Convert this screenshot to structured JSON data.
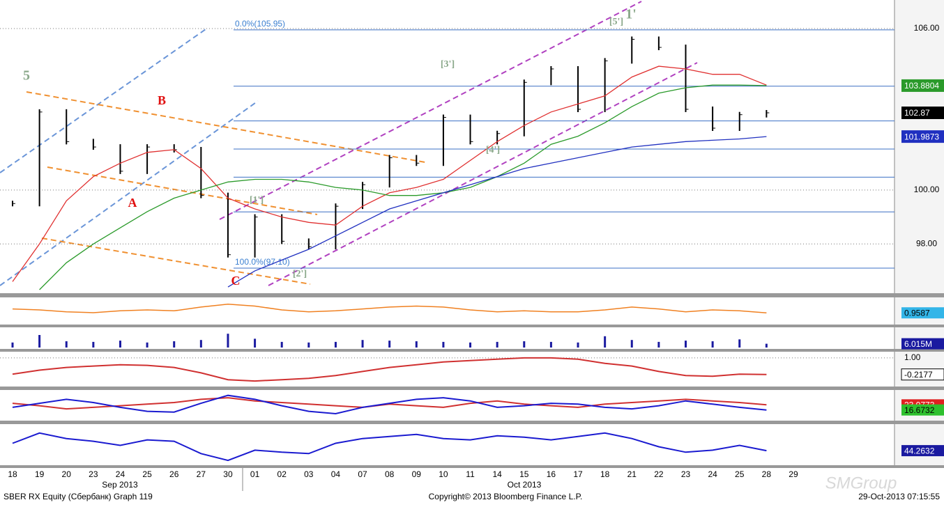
{
  "chart_data": {
    "type": "line",
    "title": "SBER RX Equity (Сбербанк) Graph 119",
    "copyright": "Copyright© 2013 Bloomberg Finance L.P.",
    "timestamp": "29-Oct-2013 07:15:55",
    "watermark": "SMGroup",
    "categories": [
      "18",
      "19",
      "20",
      "23",
      "24",
      "25",
      "26",
      "27",
      "30",
      "01",
      "02",
      "03",
      "04",
      "07",
      "08",
      "09",
      "10",
      "11",
      "14",
      "15",
      "16",
      "17",
      "18",
      "21",
      "22",
      "23",
      "24",
      "25",
      "28",
      "29"
    ],
    "months": [
      "Sep 2013",
      "Oct 2013"
    ],
    "ylim": [
      96.17,
      107.06
    ],
    "yticks": [
      {
        "value": 98,
        "label": "98.00"
      },
      {
        "value": 100,
        "label": "100.00"
      },
      {
        "value": 106,
        "label": "106.00"
      }
    ],
    "series": [
      {
        "color": "#000000",
        "values": [
          99.5,
          102.9,
          101.8,
          101.6,
          100.7,
          101.6,
          101.5,
          99.8,
          97.6,
          99.0,
          98.1,
          97.9,
          99.4,
          100.2,
          101.2,
          101.0,
          102.7,
          101.8,
          102.1,
          104.0,
          104.5,
          103.0,
          104.8,
          105.6,
          105.3,
          103.0,
          102.3,
          102.8,
          102.87,
          null
        ]
      },
      {
        "color": "#e03030",
        "values": [
          96.6,
          98.0,
          99.6,
          100.5,
          101.0,
          101.4,
          101.5,
          100.8,
          99.7,
          99.3,
          99.0,
          98.8,
          98.7,
          99.4,
          99.9,
          100.1,
          100.4,
          101.1,
          101.8,
          102.4,
          102.9,
          103.2,
          103.5,
          104.2,
          104.6,
          104.5,
          104.3,
          104.3,
          103.9,
          null
        ]
      },
      {
        "color": "#2a9a2a",
        "values": [
          null,
          96.3,
          97.3,
          98.0,
          98.6,
          99.2,
          99.7,
          100.0,
          100.3,
          100.4,
          100.4,
          100.3,
          100.1,
          100.0,
          99.8,
          99.8,
          99.9,
          100.1,
          100.5,
          101.0,
          101.7,
          102.0,
          102.5,
          103.1,
          103.6,
          103.8,
          103.9,
          103.9,
          103.8804,
          null
        ]
      },
      {
        "color": "#2030c0",
        "values": [
          null,
          null,
          null,
          null,
          null,
          null,
          null,
          null,
          96.4,
          97.0,
          97.4,
          97.8,
          98.3,
          98.8,
          99.3,
          99.6,
          99.9,
          100.2,
          100.5,
          100.8,
          101.0,
          101.2,
          101.4,
          101.6,
          101.7,
          101.8,
          101.85,
          101.9,
          101.9873,
          null
        ]
      }
    ],
    "fib_levels": [
      105.95,
      103.86,
      102.57,
      101.525,
      100.48,
      99.19,
      97.1
    ],
    "fib_labels": [
      "0.0%(105.95)",
      "100.0%(97.10)"
    ],
    "annotations": [
      "5",
      "A",
      "B",
      "C",
      "1'",
      "[5']",
      "[3']",
      "[4']",
      "[1']",
      "[2']"
    ],
    "panels": [
      {
        "type": "line",
        "color": "#f08020",
        "ylim": [
          0.85,
          1.1
        ],
        "values": [
          1.0,
          0.99,
          0.97,
          0.96,
          0.98,
          0.99,
          0.98,
          1.02,
          1.05,
          1.03,
          0.99,
          0.97,
          0.98,
          1.0,
          1.02,
          1.03,
          1.02,
          0.99,
          0.97,
          0.98,
          0.97,
          0.97,
          0.99,
          1.02,
          1.0,
          0.97,
          0.99,
          0.98,
          0.9587,
          null
        ]
      },
      {
        "type": "bar",
        "color": "#1a1aa0",
        "ylim": [
          0,
          30
        ],
        "values": [
          8,
          20,
          10,
          9,
          11,
          8,
          10,
          12,
          22,
          14,
          9,
          8,
          9,
          12,
          11,
          10,
          9,
          8,
          9,
          10,
          9,
          8,
          18,
          12,
          9,
          11,
          10,
          13,
          6.015,
          null
        ],
        "last_label": "6.015M"
      },
      {
        "type": "line",
        "color": "#d03030",
        "ylim": [
          -1.0,
          1.3
        ],
        "yticks": [
          {
            "value": 1,
            "label": "1.00"
          }
        ],
        "values": [
          -0.2,
          0.1,
          0.3,
          0.4,
          0.5,
          0.45,
          0.3,
          -0.1,
          -0.6,
          -0.7,
          -0.6,
          -0.5,
          -0.3,
          0.0,
          0.3,
          0.5,
          0.7,
          0.8,
          0.9,
          1.0,
          1.0,
          0.9,
          0.6,
          0.4,
          0.0,
          -0.3,
          -0.35,
          -0.2,
          -0.2177,
          null
        ]
      },
      {
        "type": "line",
        "color": "#d03030",
        "ylim": [
          5,
          40
        ],
        "values": [
          25,
          22,
          18,
          20,
          22,
          24,
          26,
          30,
          32,
          28,
          26,
          24,
          22,
          20,
          24,
          22,
          20,
          25,
          28,
          24,
          22,
          20,
          24,
          26,
          28,
          30,
          28,
          26,
          23.0773,
          null
        ]
      },
      {
        "type": "line",
        "color": "#1a1ad0",
        "ylim": [
          5,
          40
        ],
        "values": [
          20,
          25,
          30,
          26,
          20,
          15,
          14,
          25,
          35,
          30,
          22,
          15,
          12,
          20,
          25,
          30,
          32,
          28,
          20,
          22,
          25,
          24,
          20,
          18,
          22,
          28,
          24,
          20,
          16.6732,
          null
        ]
      },
      {
        "type": "line",
        "color": "#1a1ad0",
        "ylim": [
          25,
          80
        ],
        "values": [
          55,
          70,
          62,
          58,
          52,
          60,
          58,
          40,
          30,
          45,
          42,
          40,
          55,
          62,
          65,
          68,
          62,
          60,
          66,
          64,
          60,
          65,
          70,
          62,
          50,
          42,
          45,
          52,
          44.2632,
          null
        ]
      }
    ]
  }
}
